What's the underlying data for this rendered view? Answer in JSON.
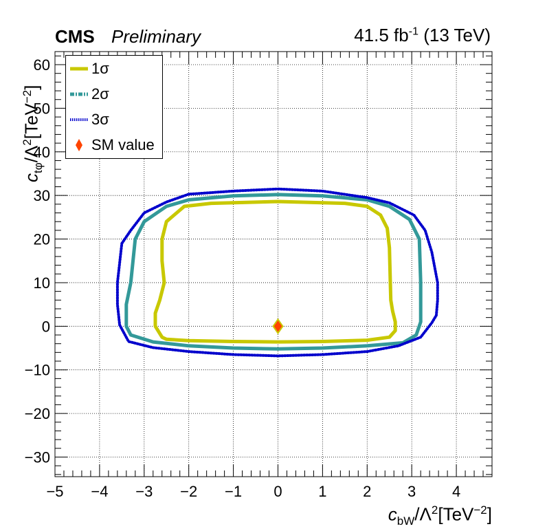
{
  "header": {
    "experiment": "CMS",
    "status": "Preliminary",
    "luminosity": "41.5 fb",
    "luminosity_exp": "-1",
    "energy": "(13 TeV)"
  },
  "axes": {
    "x_label_main": "c",
    "x_label_sub": "bW",
    "x_label_mid": "/Λ",
    "x_label_sup1": "2",
    "x_label_unit": "[TeV",
    "x_label_sup2": "−2",
    "x_label_end": "]",
    "y_label_main": "c",
    "y_label_sub": "tφ",
    "y_label_mid": "/Λ",
    "y_label_sup1": "2",
    "y_label_unit": "[TeV",
    "y_label_sup2": "−2",
    "y_label_end": "]"
  },
  "legend": {
    "entries": [
      {
        "label": "1σ",
        "color": "#c8c800",
        "style": "solid"
      },
      {
        "label": "2σ",
        "color": "#339999",
        "style": "dash-dot"
      },
      {
        "label": "3σ",
        "color": "#0000cc",
        "style": "dotted"
      },
      {
        "label": "SM value",
        "color": "#ff4400",
        "style": "marker"
      }
    ]
  },
  "chart_data": {
    "type": "contour",
    "x_range": [
      -5,
      4.8
    ],
    "y_range": [
      -34.5,
      63
    ],
    "x_ticks": [
      -5,
      -4,
      -3,
      -2,
      -1,
      0,
      1,
      2,
      3,
      4
    ],
    "y_ticks": [
      -30,
      -20,
      -10,
      0,
      10,
      20,
      30,
      40,
      50,
      60
    ],
    "x_tick_labels": [
      "−5",
      "−4",
      "−3",
      "−2",
      "−1",
      "0",
      "1",
      "2",
      "3",
      "4"
    ],
    "y_tick_labels": [
      "−30",
      "−20",
      "−10",
      "0",
      "10",
      "20",
      "30",
      "40",
      "50",
      "60"
    ],
    "grid": true,
    "legend_position": "top-left",
    "colors": {
      "one_sigma": "#c8c800",
      "two_sigma": "#339999",
      "three_sigma": "#0000cc",
      "sm_fill": "#ff4400",
      "sm_edge": "#c8c800"
    },
    "sm_value": {
      "x": 0,
      "y": 0
    },
    "contours": [
      {
        "name": "1σ",
        "points": [
          [
            -2.6,
            -2.5
          ],
          [
            -2.5,
            -3.0
          ],
          [
            -2,
            -3.3
          ],
          [
            -1,
            -3.5
          ],
          [
            0,
            -3.6
          ],
          [
            1,
            -3.5
          ],
          [
            2,
            -3.2
          ],
          [
            2.5,
            -2.5
          ],
          [
            2.63,
            -1.0
          ],
          [
            2.63,
            1.0
          ],
          [
            2.57,
            3.5
          ],
          [
            2.53,
            6
          ],
          [
            2.52,
            10
          ],
          [
            2.5,
            18
          ],
          [
            2.45,
            22.5
          ],
          [
            2.3,
            25.5
          ],
          [
            2,
            27.5
          ],
          [
            1.5,
            28.2
          ],
          [
            0,
            28.6
          ],
          [
            -1.5,
            28.2
          ],
          [
            -2.1,
            27.5
          ],
          [
            -2.5,
            24
          ],
          [
            -2.6,
            20
          ],
          [
            -2.6,
            15
          ],
          [
            -2.55,
            10
          ],
          [
            -2.65,
            6
          ],
          [
            -2.75,
            3
          ],
          [
            -2.75,
            0
          ],
          [
            -2.6,
            -2.5
          ]
        ]
      },
      {
        "name": "2σ",
        "points": [
          [
            -3.3,
            -2
          ],
          [
            -2.8,
            -3.6
          ],
          [
            -2,
            -4.5
          ],
          [
            -1,
            -5.0
          ],
          [
            0,
            -5.2
          ],
          [
            1,
            -5.0
          ],
          [
            2,
            -4.5
          ],
          [
            2.8,
            -3.8
          ],
          [
            3.1,
            -2
          ],
          [
            3.2,
            1
          ],
          [
            3.2,
            10
          ],
          [
            3.17,
            20
          ],
          [
            2.95,
            24.5
          ],
          [
            2.5,
            27.5
          ],
          [
            2,
            29
          ],
          [
            1,
            29.9
          ],
          [
            0,
            30.2
          ],
          [
            -1,
            29.9
          ],
          [
            -2,
            29
          ],
          [
            -2.5,
            27.5
          ],
          [
            -3,
            24
          ],
          [
            -3.2,
            20
          ],
          [
            -3.3,
            10
          ],
          [
            -3.4,
            5
          ],
          [
            -3.4,
            0
          ],
          [
            -3.3,
            -2
          ]
        ]
      },
      {
        "name": "3σ",
        "points": [
          [
            -3.55,
            0.3
          ],
          [
            -3.35,
            -3.5
          ],
          [
            -2.8,
            -4.9
          ],
          [
            -2,
            -5.8
          ],
          [
            -1,
            -6.5
          ],
          [
            0,
            -6.8
          ],
          [
            1,
            -6.5
          ],
          [
            2,
            -5.8
          ],
          [
            2.7,
            -4.5
          ],
          [
            3.2,
            -2.5
          ],
          [
            3.45,
            0.8
          ],
          [
            3.55,
            2.5
          ],
          [
            3.58,
            6
          ],
          [
            3.58,
            10
          ],
          [
            3.45,
            17
          ],
          [
            3.3,
            22
          ],
          [
            3.05,
            25.5
          ],
          [
            2.5,
            28.3
          ],
          [
            2,
            29.5
          ],
          [
            1,
            31
          ],
          [
            0,
            31.5
          ],
          [
            -1,
            31
          ],
          [
            -2,
            30.3
          ],
          [
            -2.5,
            28.5
          ],
          [
            -3,
            26
          ],
          [
            -3.3,
            22
          ],
          [
            -3.5,
            19
          ],
          [
            -3.6,
            10
          ],
          [
            -3.6,
            5
          ],
          [
            -3.55,
            0.3
          ]
        ]
      }
    ]
  }
}
